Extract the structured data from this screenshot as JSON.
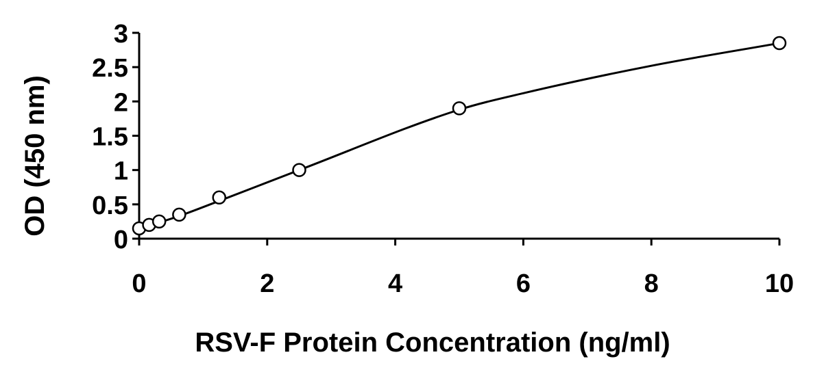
{
  "chart_data": {
    "type": "scatter",
    "title": "",
    "xlabel": "RSV-F Protein Concentration (ng/ml)",
    "ylabel": "OD (450 nm)",
    "xlim": [
      0,
      10
    ],
    "ylim": [
      0,
      3
    ],
    "x_ticks": [
      0,
      2,
      4,
      6,
      8,
      10
    ],
    "x_tick_labels": [
      "0",
      "2",
      "4",
      "6",
      "8",
      "10"
    ],
    "y_ticks": [
      0,
      0.5,
      1,
      1.5,
      2,
      2.5,
      3
    ],
    "y_tick_labels": [
      "0",
      "0.5",
      "1",
      "1.5",
      "2",
      "2.5",
      "3"
    ],
    "grid": false,
    "legend": "none",
    "marker": "open-circle",
    "series": [
      {
        "x": [
          0,
          0.156,
          0.3125,
          0.625,
          1.25,
          2.5,
          5,
          10
        ],
        "y": [
          0.15,
          0.2,
          0.25,
          0.35,
          0.6,
          1.0,
          1.9,
          2.85
        ]
      }
    ],
    "fit_curve": {
      "x": [
        0,
        0.156,
        0.3125,
        0.625,
        1.25,
        2.5,
        5,
        6,
        8,
        10
      ],
      "y": [
        0.15,
        0.19,
        0.235,
        0.33,
        0.55,
        1.0,
        1.88,
        2.12,
        2.52,
        2.85
      ]
    },
    "colors": {
      "axis": "#000000",
      "marker_stroke": "#000000",
      "marker_fill": "#ffffff",
      "curve": "#000000"
    }
  }
}
